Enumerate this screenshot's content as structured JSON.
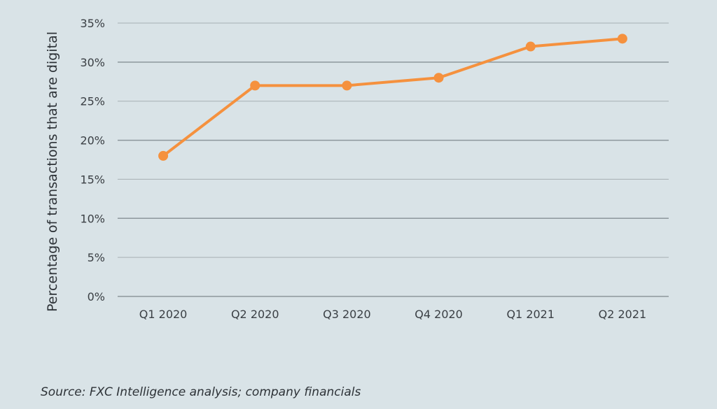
{
  "chart_data": {
    "type": "line",
    "categories": [
      "Q1 2020",
      "Q2 2020",
      "Q3 2020",
      "Q4 2020",
      "Q1 2021",
      "Q2 2021"
    ],
    "series": [
      {
        "values": [
          18,
          27,
          27,
          28,
          32,
          33
        ],
        "color": "#f5913e"
      }
    ],
    "ylabel": "Percentage of transactions that are digital",
    "xlabel": "",
    "ylim": [
      0,
      35
    ],
    "yticks": [
      0,
      5,
      10,
      15,
      20,
      25,
      30,
      35
    ],
    "ytick_labels": [
      "0%",
      "5%",
      "10%",
      "15%",
      "20%",
      "25%",
      "30%",
      "35%"
    ],
    "grid": true
  },
  "source": "Source: FXC Intelligence analysis; company financials",
  "colors": {
    "background": "#d9e3e7",
    "line": "#f5913e",
    "grid": "#9aa4a9"
  }
}
